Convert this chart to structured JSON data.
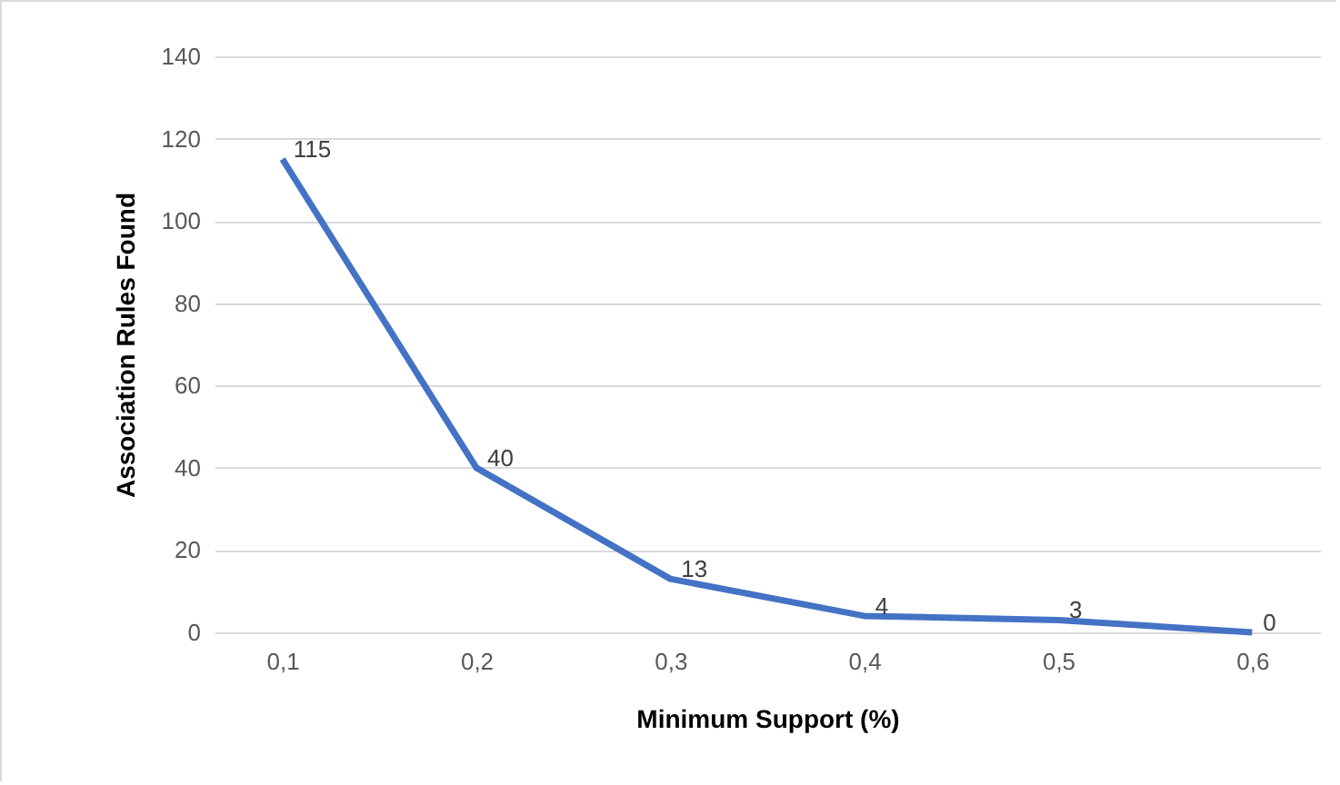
{
  "chart_data": {
    "type": "line",
    "xlabel": "Minimum Support (%)",
    "ylabel": "Association Rules Found",
    "categories": [
      "0,1",
      "0,2",
      "0,3",
      "0,4",
      "0,5",
      "0,6"
    ],
    "series": [
      {
        "color": "#4472c4",
        "values": [
          115,
          40,
          13,
          4,
          3,
          0
        ]
      }
    ],
    "ylim": [
      0,
      140
    ],
    "yticks": [
      0,
      20,
      40,
      60,
      80,
      100,
      120,
      140
    ],
    "grid": "y",
    "data_labels": true,
    "marker": "none",
    "line_style": "solid"
  }
}
